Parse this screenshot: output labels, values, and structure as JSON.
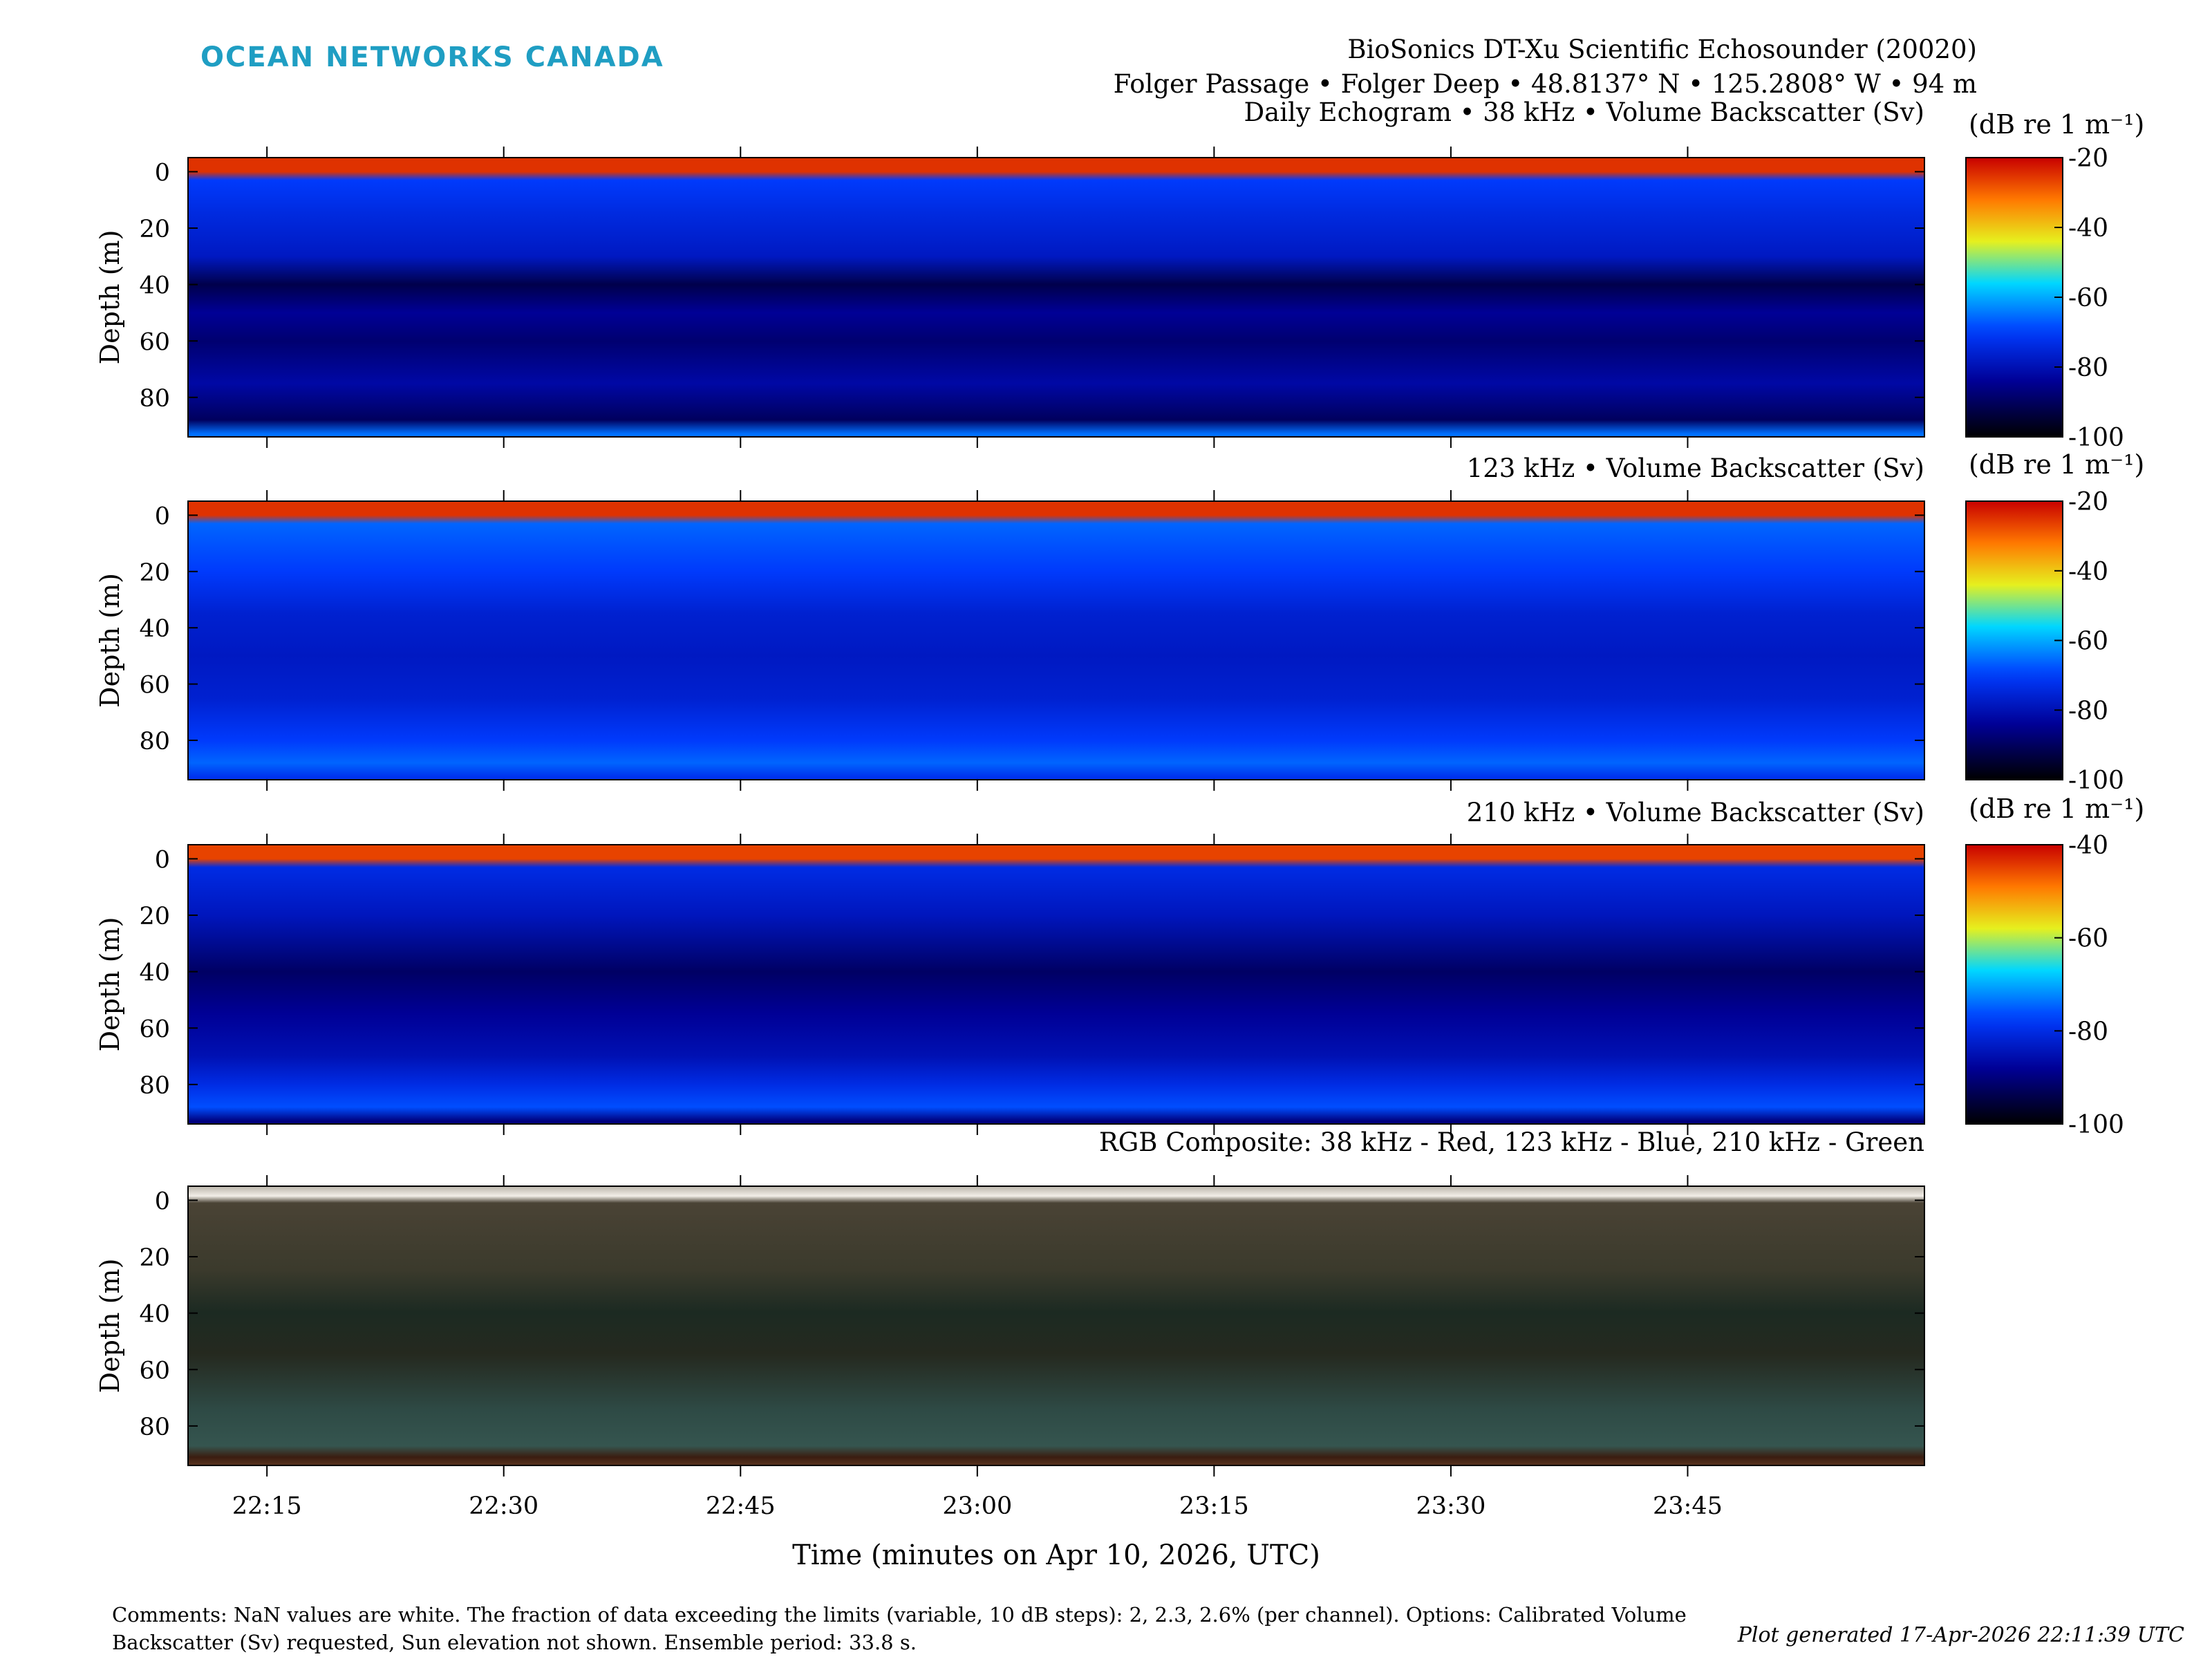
{
  "logo": "OCEAN NETWORKS CANADA",
  "header": {
    "line1": "BioSonics DT-Xu Scientific Echosounder (20020)",
    "line2": "Folger Passage • Folger Deep • 48.8137° N • 125.2808° W • 94 m",
    "line3": "Daily Echogram • 38 kHz • Volume Backscatter (Sv)"
  },
  "colorbar_unit": "(dB re 1 m⁻¹)",
  "chart_data": [
    {
      "type": "heatmap",
      "title": "Daily Echogram • 38 kHz • Volume Backscatter (Sv)",
      "ylabel": "Depth (m)",
      "ylim": [
        94,
        -5
      ],
      "yticks": [
        0,
        20,
        40,
        60,
        80
      ],
      "xlim": [
        "22:10",
        "24:00"
      ],
      "xticks": [
        "22:15",
        "22:30",
        "22:45",
        "23:00",
        "23:15",
        "23:30",
        "23:45"
      ],
      "colorbar": {
        "label": "(dB re 1 m⁻¹)",
        "range": [
          -100,
          -20
        ],
        "ticks": [
          -20,
          -40,
          -60,
          -80,
          -100
        ]
      },
      "colormap": "jet-to-black",
      "profile": [
        {
          "depth": 0,
          "sv": -25
        },
        {
          "depth": 3,
          "sv": -70
        },
        {
          "depth": 15,
          "sv": -74
        },
        {
          "depth": 30,
          "sv": -78
        },
        {
          "depth": 40,
          "sv": -92
        },
        {
          "depth": 50,
          "sv": -84
        },
        {
          "depth": 60,
          "sv": -88
        },
        {
          "depth": 75,
          "sv": -82
        },
        {
          "depth": 88,
          "sv": -90
        },
        {
          "depth": 93,
          "sv": -65
        }
      ]
    },
    {
      "type": "heatmap",
      "title": "123 kHz • Volume Backscatter (Sv)",
      "ylabel": "Depth (m)",
      "ylim": [
        94,
        -5
      ],
      "yticks": [
        0,
        20,
        40,
        60,
        80
      ],
      "xlim": [
        "22:10",
        "24:00"
      ],
      "xticks": [
        "22:15",
        "22:30",
        "22:45",
        "23:00",
        "23:15",
        "23:30",
        "23:45"
      ],
      "colorbar": {
        "label": "(dB re 1 m⁻¹)",
        "range": [
          -100,
          -20
        ],
        "ticks": [
          -20,
          -40,
          -60,
          -80,
          -100
        ]
      },
      "colormap": "jet-to-black",
      "profile": [
        {
          "depth": 0,
          "sv": -25
        },
        {
          "depth": 3,
          "sv": -66
        },
        {
          "depth": 20,
          "sv": -70
        },
        {
          "depth": 35,
          "sv": -76
        },
        {
          "depth": 50,
          "sv": -78
        },
        {
          "depth": 65,
          "sv": -76
        },
        {
          "depth": 80,
          "sv": -70
        },
        {
          "depth": 88,
          "sv": -66
        },
        {
          "depth": 93,
          "sv": -72
        }
      ]
    },
    {
      "type": "heatmap",
      "title": "210 kHz • Volume Backscatter (Sv)",
      "ylabel": "Depth (m)",
      "ylim": [
        94,
        -5
      ],
      "yticks": [
        0,
        20,
        40,
        60,
        80
      ],
      "xlim": [
        "22:10",
        "24:00"
      ],
      "xticks": [
        "22:15",
        "22:30",
        "22:45",
        "23:00",
        "23:15",
        "23:30",
        "23:45"
      ],
      "colorbar": {
        "label": "(dB re 1 m⁻¹)",
        "range": [
          -100,
          -40
        ],
        "ticks": [
          -40,
          -60,
          -80,
          -100
        ]
      },
      "colormap": "jet-to-black",
      "profile": [
        {
          "depth": 0,
          "sv": -45
        },
        {
          "depth": 3,
          "sv": -80
        },
        {
          "depth": 20,
          "sv": -84
        },
        {
          "depth": 40,
          "sv": -92
        },
        {
          "depth": 55,
          "sv": -88
        },
        {
          "depth": 70,
          "sv": -85
        },
        {
          "depth": 80,
          "sv": -80
        },
        {
          "depth": 88,
          "sv": -76
        },
        {
          "depth": 93,
          "sv": -90
        }
      ]
    },
    {
      "type": "heatmap",
      "title": "RGB Composite: 38 kHz - Red, 123 kHz - Blue, 210 kHz - Green",
      "ylabel": "Depth (m)",
      "ylim": [
        94,
        -5
      ],
      "yticks": [
        0,
        20,
        40,
        60,
        80
      ],
      "xlim": [
        "22:10",
        "24:00"
      ],
      "xticks": [
        "22:15",
        "22:30",
        "22:45",
        "23:00",
        "23:15",
        "23:30",
        "23:45"
      ],
      "xlabel": "Time (minutes on Apr 10, 2026, UTC)",
      "colormap": "rgb-composite"
    }
  ],
  "footer": {
    "comments": "Comments: NaN values are white. The fraction of data exceeding the limits (variable, 10 dB steps): 2, 2.3, 2.6% (per channel). Options: Calibrated Volume Backscatter (Sv) requested, Sun elevation not shown. Ensemble period: 33.8 s.",
    "generated": "Plot generated 17-Apr-2026 22:11:39 UTC"
  }
}
